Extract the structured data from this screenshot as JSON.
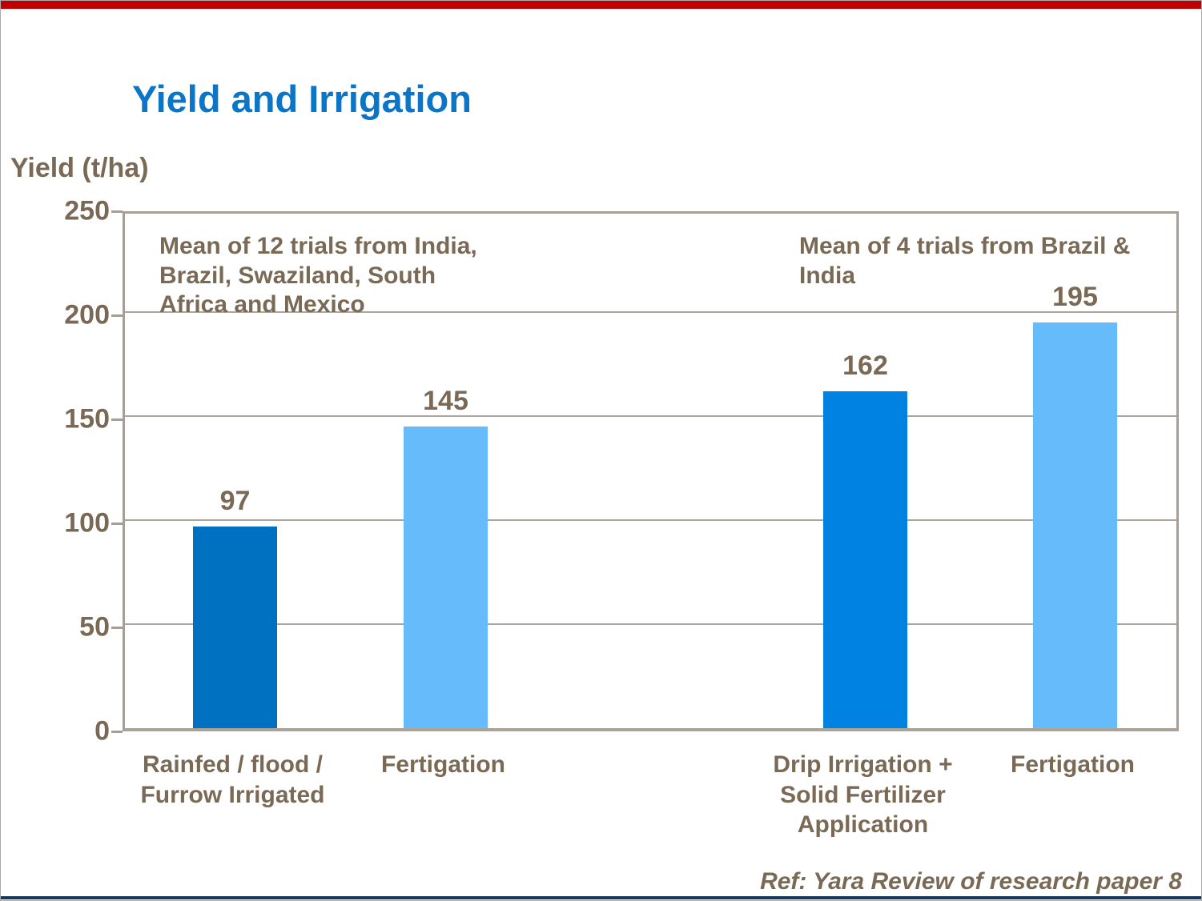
{
  "slide": {
    "title": "Yield and Irrigation",
    "ref_note": "Ref: Yara Review of research paper 8"
  },
  "colors": {
    "accent_top_bar": "#C00000",
    "accent_bottom_bar": "#17365D",
    "title_blue": "#0B75C8",
    "text_brown": "#7A6A55",
    "plot_border_tan": "#A89E94",
    "gridline_tan": "#ADA49B"
  },
  "chart_data": {
    "type": "bar",
    "title": "Yield and Irrigation",
    "xlabel": "",
    "ylabel": "Yield (t/ha)",
    "ylim": [
      0,
      250
    ],
    "yticks": [
      0,
      50,
      100,
      150,
      200,
      250
    ],
    "grid": true,
    "legend_position": "none",
    "categories": [
      "Rainfed / flood /\nFurrow Irrigated",
      "Fertigation",
      "Drip Irrigation +\nSolid Fertilizer\nApplication",
      "Fertigation"
    ],
    "values": [
      97,
      145,
      162,
      195
    ],
    "bar_colors": [
      "#0070C0",
      "#66BBFA",
      "#0082E2",
      "#66BBFA"
    ],
    "annotations": [
      {
        "text": "Mean of 12 trials from India,\nBrazil, Swaziland, South\nAfrica and Mexico",
        "anchor": "top-left"
      },
      {
        "text": "Mean of 4 trials from Brazil &\nIndia",
        "anchor": "top-right"
      }
    ]
  }
}
